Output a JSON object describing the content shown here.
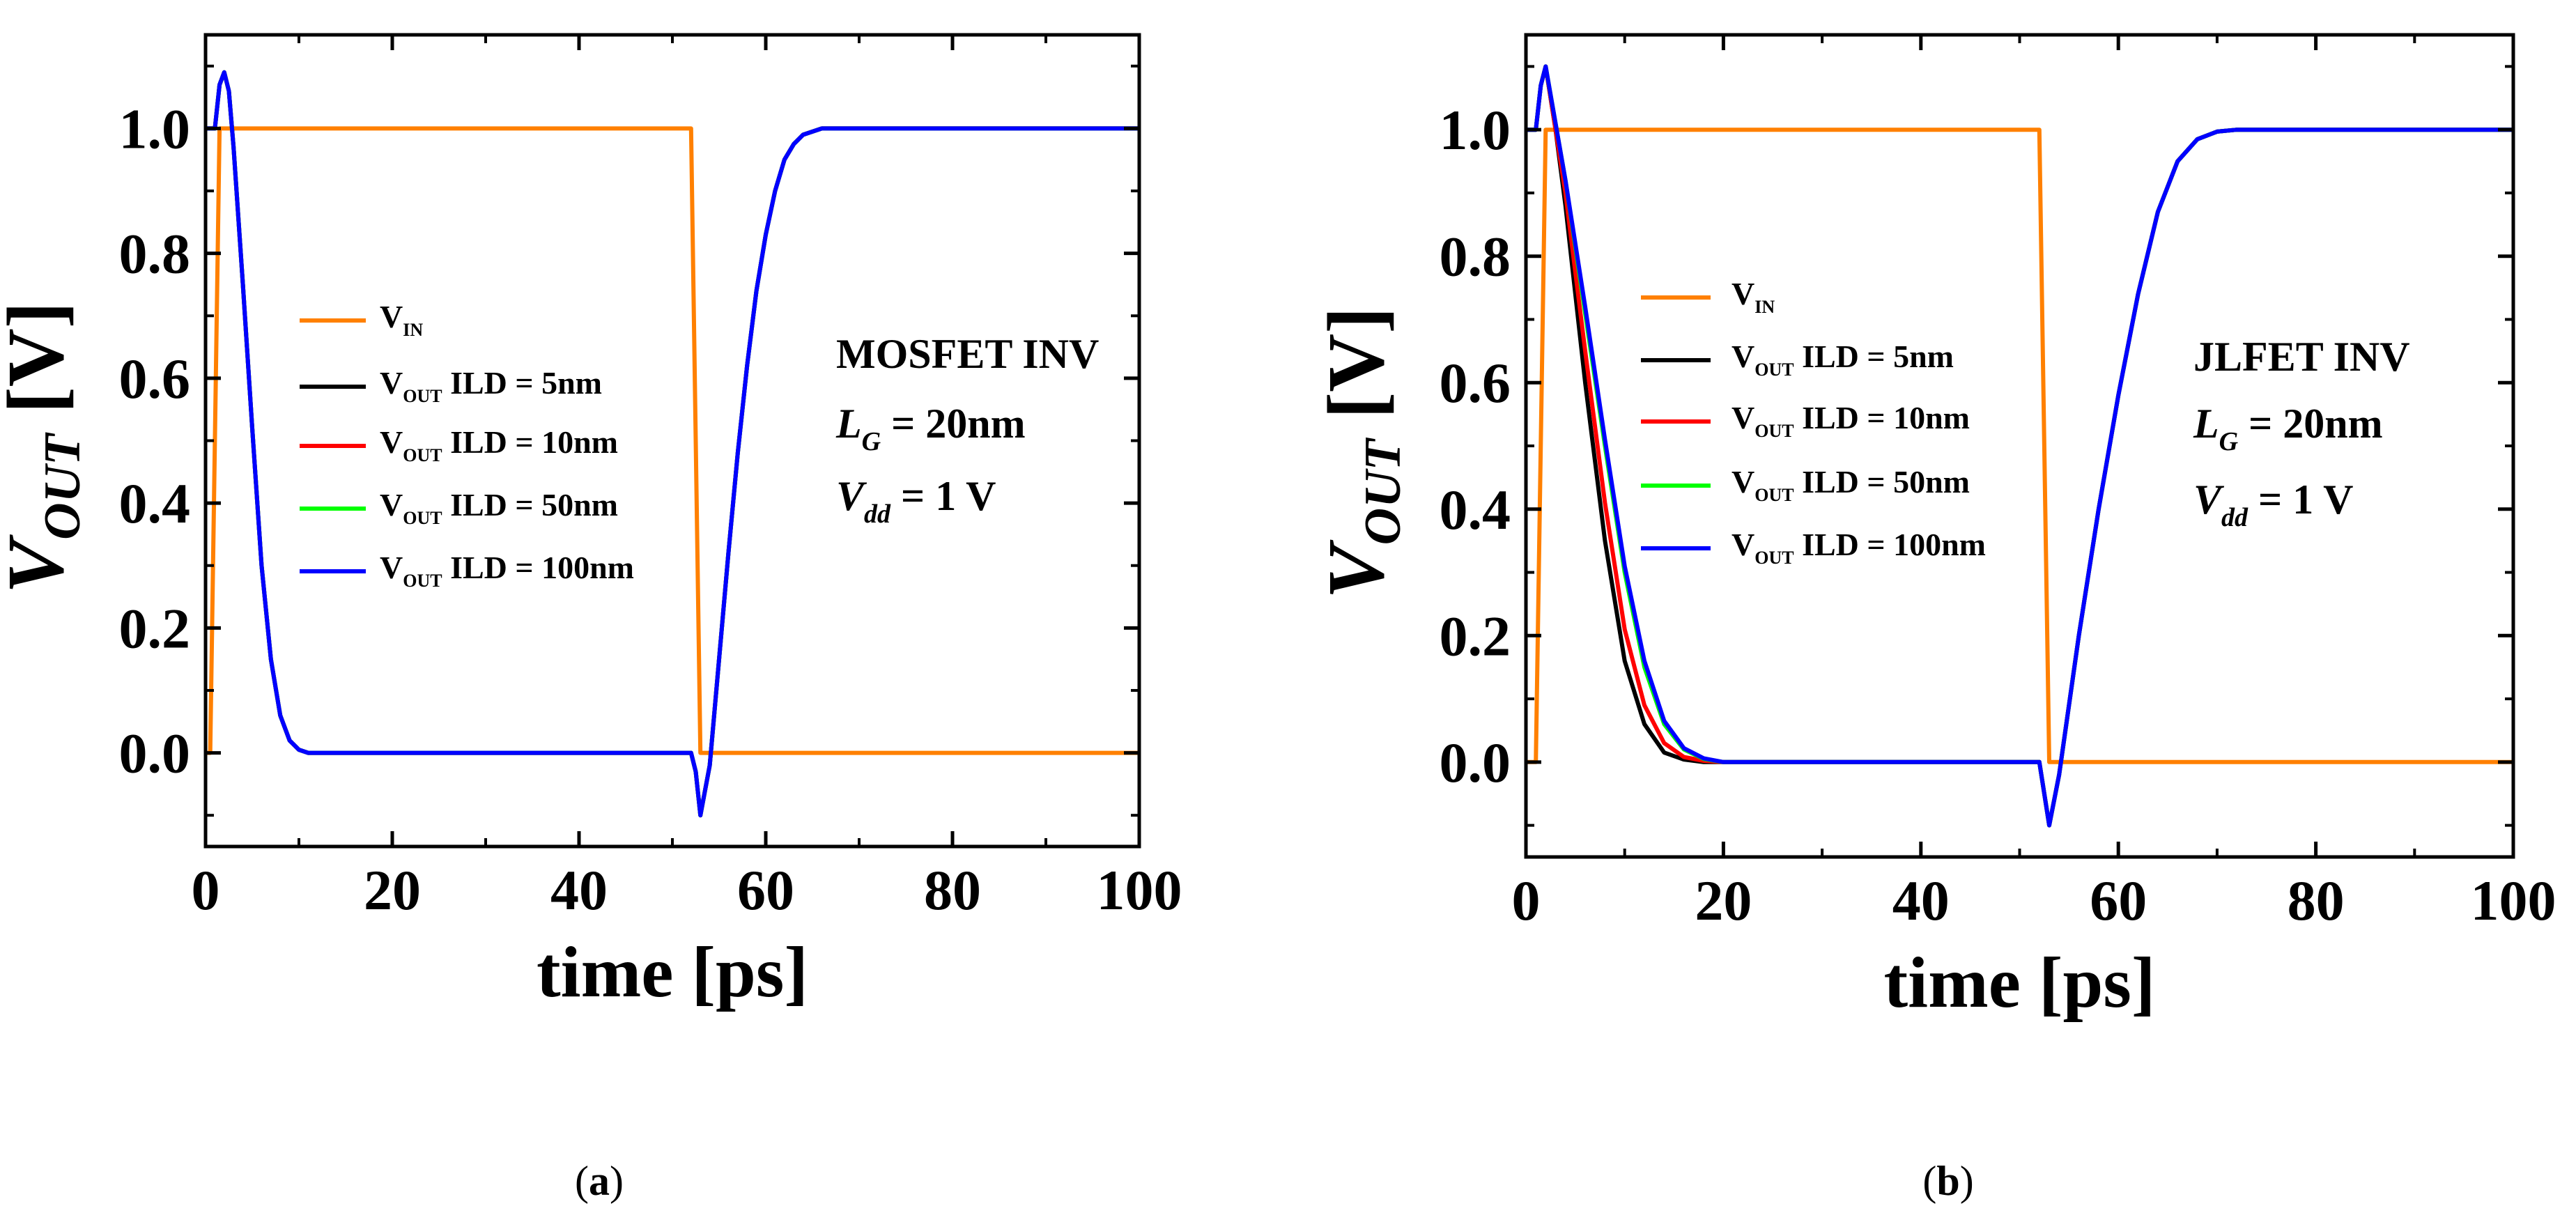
{
  "charts": [
    {
      "id": "a",
      "caption_open": "(",
      "caption_letter": "a",
      "caption_close": ")",
      "xlabel": "time [ps]",
      "ylabel_main": "V",
      "ylabel_sub": "OUT",
      "ylabel_unit": " [V]",
      "xticks": [
        "0",
        "20",
        "40",
        "60",
        "80",
        "100"
      ],
      "yticks": [
        "0.0",
        "0.2",
        "0.4",
        "0.6",
        "0.8",
        "1.0"
      ],
      "legend": [
        {
          "main": "V",
          "sub": "IN",
          "rest": "",
          "color": "#ff8000"
        },
        {
          "main": "V",
          "sub": "OUT",
          "rest": " ILD = 5nm",
          "color": "#000000"
        },
        {
          "main": "V",
          "sub": "OUT",
          "rest": " ILD = 10nm",
          "color": "#ff0000"
        },
        {
          "main": "V",
          "sub": "OUT",
          "rest": " ILD = 50nm",
          "color": "#00ff00"
        },
        {
          "main": "V",
          "sub": "OUT",
          "rest": " ILD = 100nm",
          "color": "#0000ff"
        }
      ],
      "annotation": [
        {
          "main": "MOSFET INV",
          "sub": "",
          "rest": ""
        },
        {
          "main": "L",
          "sub": "G",
          "rest": " = 20nm"
        },
        {
          "main": "V",
          "sub": "dd",
          "rest": " = 1 V"
        }
      ]
    },
    {
      "id": "b",
      "caption_open": "(",
      "caption_letter": "b",
      "caption_close": ")",
      "xlabel": "time [ps]",
      "ylabel_main": "V",
      "ylabel_sub": "OUT",
      "ylabel_unit": " [V]",
      "xticks": [
        "0",
        "20",
        "40",
        "60",
        "80",
        "100"
      ],
      "yticks": [
        "0.0",
        "0.2",
        "0.4",
        "0.6",
        "0.8",
        "1.0"
      ],
      "legend": [
        {
          "main": "V",
          "sub": "IN",
          "rest": "",
          "color": "#ff8000"
        },
        {
          "main": "V",
          "sub": "OUT",
          "rest": " ILD = 5nm",
          "color": "#000000"
        },
        {
          "main": "V",
          "sub": "OUT",
          "rest": " ILD = 10nm",
          "color": "#ff0000"
        },
        {
          "main": "V",
          "sub": "OUT",
          "rest": " ILD = 50nm",
          "color": "#00ff00"
        },
        {
          "main": "V",
          "sub": "OUT",
          "rest": " ILD = 100nm",
          "color": "#0000ff"
        }
      ],
      "annotation": [
        {
          "main": "JLFET INV",
          "sub": "",
          "rest": ""
        },
        {
          "main": "L",
          "sub": "G",
          "rest": " = 20nm"
        },
        {
          "main": "V",
          "sub": "dd",
          "rest": " = 1 V"
        }
      ]
    }
  ],
  "chart_data": [
    {
      "type": "line",
      "xlim": [
        0,
        100
      ],
      "ylim": [
        -0.15,
        1.15
      ],
      "series": [
        {
          "name": "V_IN",
          "color": "#ff8000",
          "x": [
            0,
            0.5,
            1.5,
            52,
            53,
            100
          ],
          "y": [
            0,
            0,
            1,
            1,
            0,
            0
          ]
        },
        {
          "name": "V_OUT ILD = 5nm",
          "color": "#000000",
          "x": [
            0,
            1,
            1.5,
            2,
            2.5,
            3,
            4,
            5,
            6,
            7,
            8,
            9,
            10,
            11,
            52,
            52.5,
            53,
            54,
            55,
            56,
            57,
            58,
            59,
            60,
            61,
            62,
            63,
            64,
            65,
            66,
            67,
            68,
            70,
            100
          ],
          "y": [
            1,
            1,
            1.07,
            1.09,
            1.06,
            0.97,
            0.75,
            0.52,
            0.3,
            0.15,
            0.06,
            0.02,
            0.005,
            0,
            0,
            -0.03,
            -0.1,
            -0.02,
            0.15,
            0.32,
            0.48,
            0.62,
            0.74,
            0.83,
            0.9,
            0.95,
            0.975,
            0.99,
            0.995,
            1,
            1,
            1,
            1,
            1
          ]
        },
        {
          "name": "V_OUT ILD = 10nm",
          "color": "#ff0000",
          "x": [
            0,
            1,
            1.5,
            2,
            2.5,
            3,
            4,
            5,
            6,
            7,
            8,
            9,
            10,
            11,
            52,
            52.5,
            53,
            54,
            55,
            56,
            57,
            58,
            59,
            60,
            61,
            62,
            63,
            64,
            65,
            66,
            67,
            68,
            70,
            100
          ],
          "y": [
            1,
            1,
            1.07,
            1.09,
            1.06,
            0.97,
            0.75,
            0.52,
            0.3,
            0.15,
            0.06,
            0.02,
            0.005,
            0,
            0,
            -0.03,
            -0.1,
            -0.02,
            0.15,
            0.32,
            0.48,
            0.62,
            0.74,
            0.83,
            0.9,
            0.95,
            0.975,
            0.99,
            0.995,
            1,
            1,
            1,
            1,
            1
          ]
        },
        {
          "name": "V_OUT ILD = 50nm",
          "color": "#00ff00",
          "x": [
            0,
            1,
            1.5,
            2,
            2.5,
            3,
            4,
            5,
            6,
            7,
            8,
            9,
            10,
            11,
            52,
            52.5,
            53,
            54,
            55,
            56,
            57,
            58,
            59,
            60,
            61,
            62,
            63,
            64,
            65,
            66,
            67,
            68,
            70,
            100
          ],
          "y": [
            1,
            1,
            1.07,
            1.09,
            1.06,
            0.97,
            0.75,
            0.52,
            0.3,
            0.15,
            0.06,
            0.02,
            0.005,
            0,
            0,
            -0.03,
            -0.1,
            -0.02,
            0.15,
            0.32,
            0.48,
            0.62,
            0.74,
            0.83,
            0.9,
            0.95,
            0.975,
            0.99,
            0.995,
            1,
            1,
            1,
            1,
            1
          ]
        },
        {
          "name": "V_OUT ILD = 100nm",
          "color": "#0000ff",
          "x": [
            0,
            1,
            1.5,
            2,
            2.5,
            3,
            4,
            5,
            6,
            7,
            8,
            9,
            10,
            11,
            52,
            52.5,
            53,
            54,
            55,
            56,
            57,
            58,
            59,
            60,
            61,
            62,
            63,
            64,
            65,
            66,
            67,
            68,
            70,
            100
          ],
          "y": [
            1,
            1,
            1.07,
            1.09,
            1.06,
            0.97,
            0.75,
            0.52,
            0.3,
            0.15,
            0.06,
            0.02,
            0.005,
            0,
            0,
            -0.03,
            -0.1,
            -0.02,
            0.15,
            0.32,
            0.48,
            0.62,
            0.74,
            0.83,
            0.9,
            0.95,
            0.975,
            0.99,
            0.995,
            1,
            1,
            1,
            1,
            1
          ]
        }
      ]
    },
    {
      "type": "line",
      "xlim": [
        0,
        100
      ],
      "ylim": [
        -0.15,
        1.15
      ],
      "series": [
        {
          "name": "V_IN",
          "color": "#ff8000",
          "x": [
            0,
            1,
            2,
            52,
            53,
            100
          ],
          "y": [
            0,
            0,
            1,
            1,
            0,
            0
          ]
        },
        {
          "name": "V_OUT ILD = 5nm",
          "color": "#000000",
          "x": [
            0,
            1,
            1.5,
            2,
            3,
            4,
            6,
            8,
            10,
            12,
            14,
            16,
            18,
            52,
            52.5,
            53,
            54,
            56,
            58,
            60,
            62,
            64,
            66,
            68,
            70,
            72,
            74,
            100
          ],
          "y": [
            1,
            1,
            1.07,
            1.1,
            1.0,
            0.88,
            0.6,
            0.35,
            0.16,
            0.06,
            0.015,
            0.004,
            0,
            0,
            -0.05,
            -0.1,
            -0.02,
            0.2,
            0.4,
            0.58,
            0.74,
            0.87,
            0.95,
            0.985,
            0.997,
            1,
            1,
            1
          ]
        },
        {
          "name": "V_OUT ILD = 10nm",
          "color": "#ff0000",
          "x": [
            0,
            1,
            1.5,
            2,
            3,
            4,
            6,
            8,
            10,
            12,
            14,
            16,
            18,
            20,
            52,
            52.5,
            53,
            54,
            56,
            58,
            60,
            62,
            64,
            66,
            68,
            70,
            72,
            74,
            100
          ],
          "y": [
            1,
            1,
            1.07,
            1.1,
            1.0,
            0.9,
            0.65,
            0.41,
            0.21,
            0.09,
            0.03,
            0.008,
            0.002,
            0,
            0,
            -0.05,
            -0.1,
            -0.02,
            0.2,
            0.4,
            0.58,
            0.74,
            0.87,
            0.95,
            0.985,
            0.997,
            1,
            1,
            1
          ]
        },
        {
          "name": "V_OUT ILD = 50nm",
          "color": "#00ff00",
          "x": [
            0,
            1,
            1.5,
            2,
            3,
            4,
            6,
            8,
            10,
            12,
            14,
            16,
            18,
            20,
            52,
            52.5,
            53,
            54,
            56,
            58,
            60,
            62,
            64,
            66,
            68,
            70,
            72,
            74,
            100
          ],
          "y": [
            1,
            1,
            1.07,
            1.1,
            1.01,
            0.92,
            0.71,
            0.5,
            0.3,
            0.15,
            0.06,
            0.02,
            0.005,
            0,
            0,
            -0.05,
            -0.1,
            -0.02,
            0.2,
            0.4,
            0.58,
            0.74,
            0.87,
            0.95,
            0.985,
            0.997,
            1,
            1,
            1
          ]
        },
        {
          "name": "V_OUT ILD = 100nm",
          "color": "#0000ff",
          "x": [
            0,
            1,
            1.5,
            2,
            3,
            4,
            6,
            8,
            10,
            12,
            14,
            16,
            18,
            20,
            52,
            52.5,
            53,
            54,
            56,
            58,
            60,
            62,
            64,
            66,
            68,
            70,
            72,
            74,
            100
          ],
          "y": [
            1,
            1,
            1.07,
            1.1,
            1.01,
            0.92,
            0.72,
            0.51,
            0.31,
            0.16,
            0.065,
            0.022,
            0.006,
            0,
            0,
            -0.05,
            -0.1,
            -0.02,
            0.2,
            0.4,
            0.58,
            0.74,
            0.87,
            0.95,
            0.985,
            0.997,
            1,
            1,
            1
          ]
        }
      ]
    }
  ]
}
